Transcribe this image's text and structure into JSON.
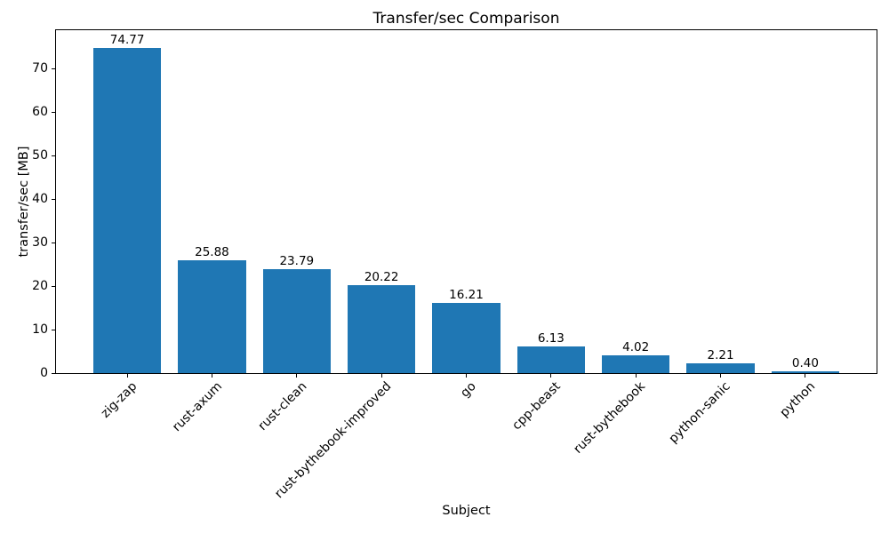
{
  "chart_data": {
    "type": "bar",
    "title": "Transfer/sec Comparison",
    "xlabel": "Subject",
    "ylabel": "transfer/sec [MB]",
    "categories": [
      "zig-zap",
      "rust-axum",
      "rust-clean",
      "rust-bythebook-improved",
      "go",
      "cpp-beast",
      "rust-bythebook",
      "python-sanic",
      "python"
    ],
    "values": [
      74.77,
      25.88,
      23.79,
      20.22,
      16.21,
      6.13,
      4.02,
      2.21,
      0.4
    ],
    "value_labels": [
      "74.77",
      "25.88",
      "23.79",
      "20.22",
      "16.21",
      "6.13",
      "4.02",
      "2.21",
      "0.40"
    ],
    "ylim": [
      0,
      78.8
    ],
    "yticks": [
      0,
      10,
      20,
      30,
      40,
      50,
      60,
      70
    ],
    "xtick_rotation_deg": 45,
    "bar_color": "#1f77b4",
    "grid": false,
    "legend_position": "none"
  }
}
